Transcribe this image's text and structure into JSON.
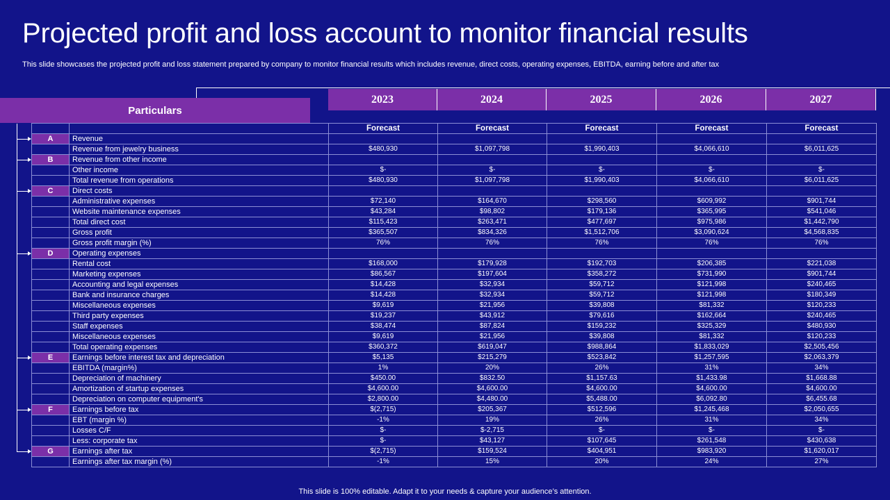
{
  "title": "Projected profit and loss account to monitor financial results",
  "subtitle": "This slide showcases the projected profit and loss statement prepared by company to monitor financial results which includes revenue, direct costs, operating expenses, EBITDA, earning before and after tax",
  "footer": "This slide is 100% editable. Adapt it to your needs & capture your audience’s attention.",
  "table": {
    "particulars_label": "Particulars",
    "years": [
      "2023",
      "2024",
      "2025",
      "2026",
      "2027"
    ],
    "forecast_label": "Forecast",
    "rows": [
      {
        "letter": "A",
        "label": "Revenue",
        "values": [
          "",
          "",
          "",
          "",
          ""
        ]
      },
      {
        "letter": "",
        "label": "Revenue from jewelry business",
        "values": [
          "$480,930",
          "$1,097,798",
          "$1,990,403",
          "$4,066,610",
          "$6,011,625"
        ]
      },
      {
        "letter": "B",
        "label": "Revenue from other income",
        "values": [
          "",
          "",
          "",
          "",
          ""
        ]
      },
      {
        "letter": "",
        "label": "Other income",
        "values": [
          "$-",
          "$-",
          "$-",
          "$-",
          "$-"
        ]
      },
      {
        "letter": "",
        "label": "Total revenue from operations",
        "values": [
          "$480,930",
          "$1,097,798",
          "$1,990,403",
          "$4,066,610",
          "$6,011,625"
        ]
      },
      {
        "letter": "C",
        "label": "Direct costs",
        "values": [
          "",
          "",
          "",
          "",
          ""
        ]
      },
      {
        "letter": "",
        "label": "Administrative expenses",
        "values": [
          "$72,140",
          "$164,670",
          "$298,560",
          "$609,992",
          "$901,744"
        ]
      },
      {
        "letter": "",
        "label": "Website maintenance expenses",
        "values": [
          "$43,284",
          "$98,802",
          "$179,136",
          "$365,995",
          "$541,046"
        ]
      },
      {
        "letter": "",
        "label": "Total direct cost",
        "values": [
          "$115,423",
          "$263,471",
          "$477,697",
          "$975,986",
          "$1,442,790"
        ]
      },
      {
        "letter": "",
        "label": "Gross profit",
        "values": [
          "$365,507",
          "$834,326",
          "$1,512,706",
          "$3,090,624",
          "$4,568,835"
        ]
      },
      {
        "letter": "",
        "label": "Gross profit margin (%)",
        "values": [
          "76%",
          "76%",
          "76%",
          "76%",
          "76%"
        ]
      },
      {
        "letter": "D",
        "label": "Operating expenses",
        "values": [
          "",
          "",
          "",
          "",
          ""
        ]
      },
      {
        "letter": "",
        "label": "Rental cost",
        "values": [
          "$168,000",
          "$179,928",
          "$192,703",
          "$206,385",
          "$221,038"
        ]
      },
      {
        "letter": "",
        "label": "Marketing expenses",
        "values": [
          "$86,567",
          "$197,604",
          "$358,272",
          "$731,990",
          "$901,744"
        ]
      },
      {
        "letter": "",
        "label": "Accounting and legal expenses",
        "values": [
          "$14,428",
          "$32,934",
          "$59,712",
          "$121,998",
          "$240,465"
        ]
      },
      {
        "letter": "",
        "label": "Bank and insurance charges",
        "values": [
          "$14,428",
          "$32,934",
          "$59,712",
          "$121,998",
          "$180,349"
        ]
      },
      {
        "letter": "",
        "label": "Miscellaneous expenses",
        "values": [
          "$9,619",
          "$21,956",
          "$39,808",
          "$81,332",
          "$120,233"
        ]
      },
      {
        "letter": "",
        "label": "Third party expenses",
        "values": [
          "$19,237",
          "$43,912",
          "$79,616",
          "$162,664",
          "$240,465"
        ]
      },
      {
        "letter": "",
        "label": "Staff expenses",
        "values": [
          "$38,474",
          "$87,824",
          "$159,232",
          "$325,329",
          "$480,930"
        ]
      },
      {
        "letter": "",
        "label": "Miscellaneous expenses",
        "values": [
          "$9,619",
          "$21,956",
          "$39,808",
          "$81,332",
          "$120,233"
        ]
      },
      {
        "letter": "",
        "label": "Total operating expenses",
        "values": [
          "$360,372",
          "$619,047",
          "$988,864",
          "$1,833,029",
          "$2,505,456"
        ]
      },
      {
        "letter": "E",
        "label": "Earnings before interest tax and depreciation",
        "values": [
          "$5,135",
          "$215,279",
          "$523,842",
          "$1,257,595",
          "$2,063,379"
        ]
      },
      {
        "letter": "",
        "label": "EBITDA (margin%)",
        "values": [
          "1%",
          "20%",
          "26%",
          "31%",
          "34%"
        ]
      },
      {
        "letter": "",
        "label": "Depreciation of machinery",
        "values": [
          "$450.00",
          "$832.50",
          "$1,157.63",
          "$1,433.98",
          "$1,668.88"
        ]
      },
      {
        "letter": "",
        "label": "Amortization of startup expenses",
        "values": [
          "$4,600.00",
          "$4,600.00",
          "$4,600.00",
          "$4,600.00",
          "$4,600.00"
        ]
      },
      {
        "letter": "",
        "label": "Depreciation on computer equipment's",
        "values": [
          "$2,800.00",
          "$4,480.00",
          "$5,488.00",
          "$6,092.80",
          "$6,455.68"
        ]
      },
      {
        "letter": "F",
        "label": "Earnings before tax",
        "values": [
          "$(2,715)",
          "$205,367",
          "$512,596",
          "$1,245,468",
          "$2,050,655"
        ]
      },
      {
        "letter": "",
        "label": "EBT (margin %)",
        "values": [
          "-1%",
          "19%",
          "26%",
          "31%",
          "34%"
        ]
      },
      {
        "letter": "",
        "label": "Losses C/F",
        "values": [
          "$-",
          "$-2,715",
          "$-",
          "$-",
          "$-"
        ]
      },
      {
        "letter": "",
        "label": "Less: corporate tax",
        "values": [
          "$-",
          "$43,127",
          "$107,645",
          "$261,548",
          "$430,638"
        ]
      },
      {
        "letter": "G",
        "label": "Earnings after tax",
        "values": [
          "$(2,715)",
          "$159,524",
          "$404,951",
          "$983,920",
          "$1,620,017"
        ]
      },
      {
        "letter": "",
        "label": "Earnings after tax margin (%)",
        "values": [
          "-1%",
          "15%",
          "20%",
          "24%",
          "27%"
        ]
      }
    ]
  }
}
